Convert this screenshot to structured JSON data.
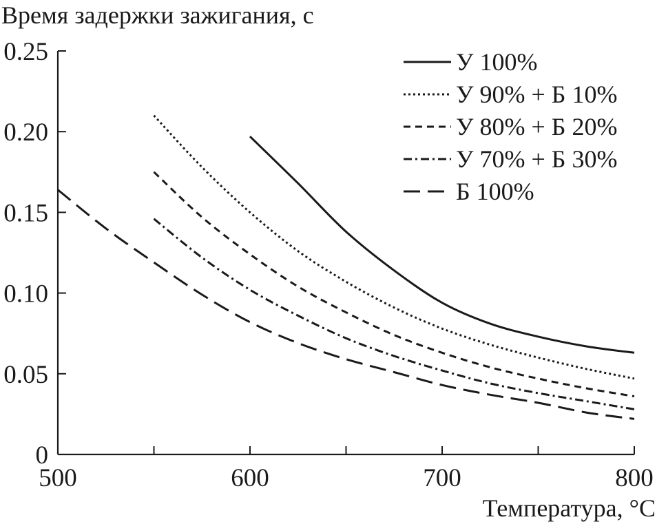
{
  "chart_data": {
    "type": "line",
    "ylabel": "Время задержки зажигания, с",
    "xlabel": "Температура, °C",
    "xlim": [
      500,
      800
    ],
    "ylim": [
      0,
      0.25
    ],
    "x_ticks": [
      500,
      600,
      700,
      800
    ],
    "x_tick_labels": [
      "500",
      "600",
      "700",
      "800"
    ],
    "x_minor_ticks": [
      550,
      650,
      750
    ],
    "y_ticks": [
      0,
      0.05,
      0.1,
      0.15,
      0.2,
      0.25
    ],
    "y_tick_labels": [
      "0",
      "0.05",
      "0.10",
      "0.15",
      "0.20",
      "0.25"
    ],
    "grid": false,
    "legend_position": "top-right",
    "series": [
      {
        "name": "У 100%",
        "dash": "solid",
        "x": [
          600,
          625,
          650,
          675,
          700,
          725,
          750,
          775,
          800
        ],
        "y": [
          0.197,
          0.168,
          0.138,
          0.114,
          0.094,
          0.081,
          0.073,
          0.067,
          0.063
        ]
      },
      {
        "name": "У 90% + Б 10%",
        "dash": "dotted",
        "x": [
          550,
          575,
          600,
          625,
          650,
          675,
          700,
          725,
          750,
          775,
          800
        ],
        "y": [
          0.21,
          0.178,
          0.15,
          0.126,
          0.107,
          0.091,
          0.078,
          0.068,
          0.06,
          0.053,
          0.047
        ]
      },
      {
        "name": "У 80% + Б 20%",
        "dash": "dashed",
        "x": [
          550,
          575,
          600,
          625,
          650,
          675,
          700,
          725,
          750,
          775,
          800
        ],
        "y": [
          0.175,
          0.147,
          0.124,
          0.104,
          0.088,
          0.074,
          0.063,
          0.054,
          0.047,
          0.041,
          0.036
        ]
      },
      {
        "name": "У 70% + Б 30%",
        "dash": "dash-dot",
        "x": [
          550,
          575,
          600,
          625,
          650,
          675,
          700,
          725,
          750,
          775,
          800
        ],
        "y": [
          0.146,
          0.122,
          0.102,
          0.086,
          0.072,
          0.061,
          0.052,
          0.044,
          0.038,
          0.033,
          0.028
        ]
      },
      {
        "name": "Б 100%",
        "dash": "long-dash",
        "x": [
          500,
          525,
          550,
          575,
          600,
          625,
          650,
          675,
          700,
          725,
          750,
          775,
          800
        ],
        "y": [
          0.164,
          0.14,
          0.119,
          0.099,
          0.082,
          0.069,
          0.059,
          0.051,
          0.043,
          0.037,
          0.032,
          0.026,
          0.022
        ]
      }
    ]
  }
}
